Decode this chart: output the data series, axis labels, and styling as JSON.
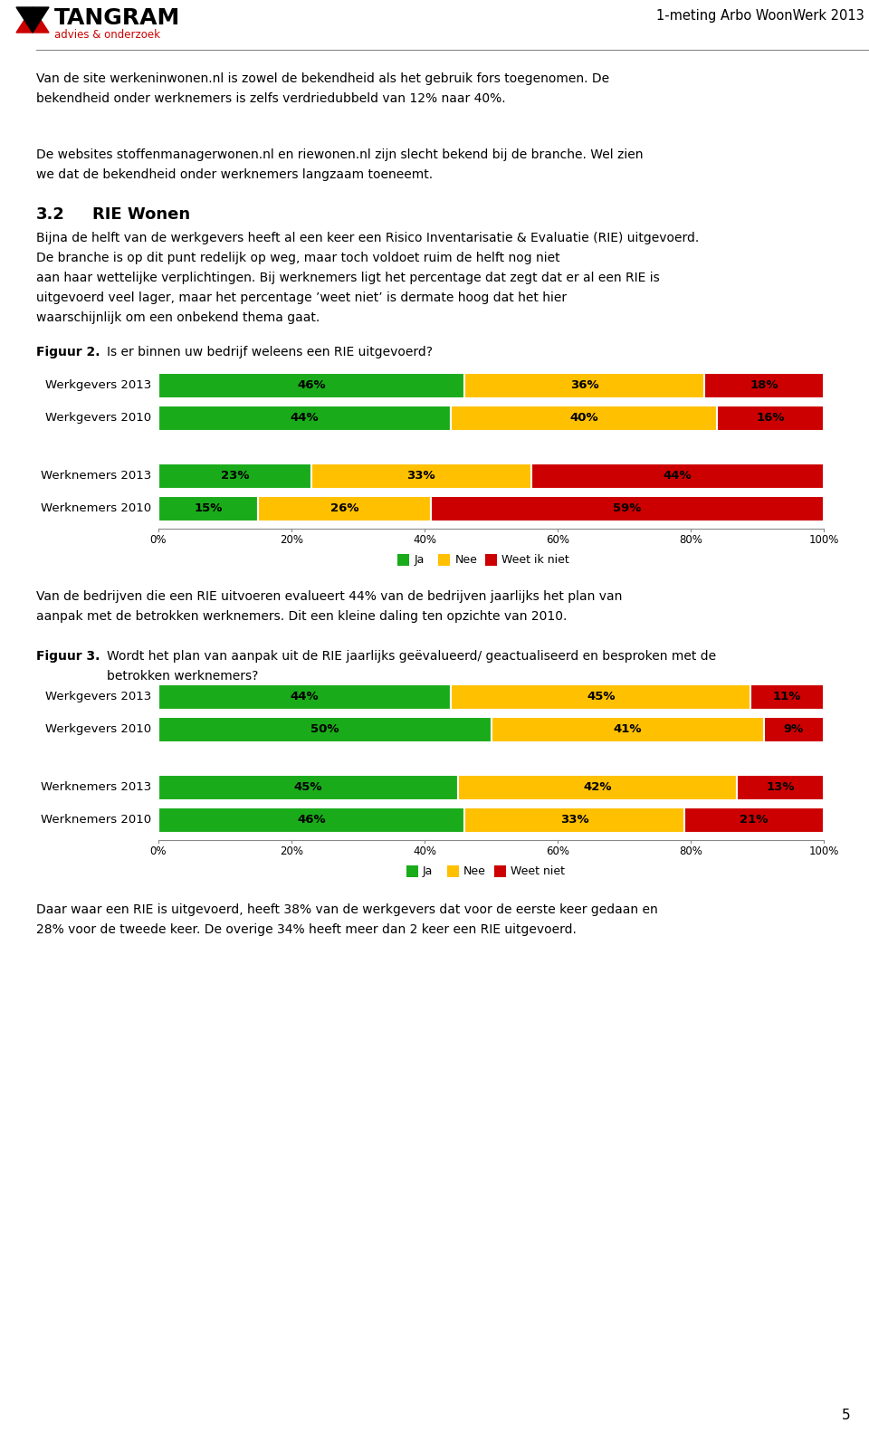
{
  "header_title": "1-meting Arbo WoonWerk 2013",
  "page_number": "5",
  "intro_lines": [
    "Van de site werkeninwonen.nl is zowel de bekendheid als het gebruik fors toegenomen. De",
    "bekendheid onder werknemers is zelfs verdriedubbeld van 12% naar 40%.",
    "",
    "De websites stoffenmanagerwonen.nl en riewonen.nl zijn slecht bekend bij de branche. Wel zien",
    "we dat de bekendheid onder werknemers langzaam toeneemt."
  ],
  "section_title_num": "3.2",
  "section_title_text": "RIE Wonen",
  "section_lines": [
    "Bijna de helft van de werkgevers heeft al een keer een Risico Inventarisatie & Evaluatie (RIE) uitgevoerd.",
    "De branche is op dit punt redelijk op weg, maar toch voldoet ruim de helft nog niet",
    "aan haar wettelijke verplichtingen. Bij werknemers ligt het percentage dat zegt dat er al een RIE is",
    "uitgevoerd veel lager, maar het percentage ʼweet nietʼ is dermate hoog dat het hier",
    "waarschijnlijk om een onbekend thema gaat."
  ],
  "fig2_label_bold": "Figuur 2.",
  "fig2_label_rest": "Is er binnen uw bedrijf weleens een RIE uitgevoerd?",
  "fig2_categories": [
    "Werkgevers 2013",
    "Werkgevers 2010",
    "",
    "Werknemers 2013",
    "Werknemers 2010"
  ],
  "fig2_ja": [
    46,
    44,
    0,
    23,
    15
  ],
  "fig2_nee": [
    36,
    40,
    0,
    33,
    26
  ],
  "fig2_weet": [
    18,
    16,
    0,
    44,
    59
  ],
  "legend_fig2": [
    "Ja",
    "Nee",
    "Weet ik niet"
  ],
  "mid_lines": [
    "Van de bedrijven die een RIE uitvoeren evalueert 44% van de bedrijven jaarlijks het plan van",
    "aanpak met de betrokken werknemers. Dit een kleine daling ten opzichte van 2010."
  ],
  "fig3_label_bold": "Figuur 3.",
  "fig3_label_line1": "Wordt het plan van aanpak uit de RIE jaarlijks geëvalueerd/ geactualiseerd en besproken met de",
  "fig3_label_line2": "betrokken werknemers?",
  "fig3_categories": [
    "Werkgevers 2013",
    "Werkgevers 2010",
    "",
    "Werknemers 2013",
    "Werknemers 2010"
  ],
  "fig3_ja": [
    44,
    50,
    0,
    45,
    46
  ],
  "fig3_nee": [
    45,
    41,
    0,
    42,
    33
  ],
  "fig3_weet": [
    11,
    9,
    0,
    13,
    21
  ],
  "legend_fig3": [
    "Ja",
    "Nee",
    "Weet niet"
  ],
  "bottom_lines": [
    "Daar waar een RIE is uitgevoerd, heeft 38% van de werkgevers dat voor de eerste keer gedaan en",
    "28% voor de tweede keer. De overige 34% heeft meer dan 2 keer een RIE uitgevoerd."
  ],
  "color_ja": "#1aab1a",
  "color_nee": "#ffc000",
  "color_weet": "#cc0000",
  "color_bg": "#ffffff",
  "color_gray": "#888888"
}
